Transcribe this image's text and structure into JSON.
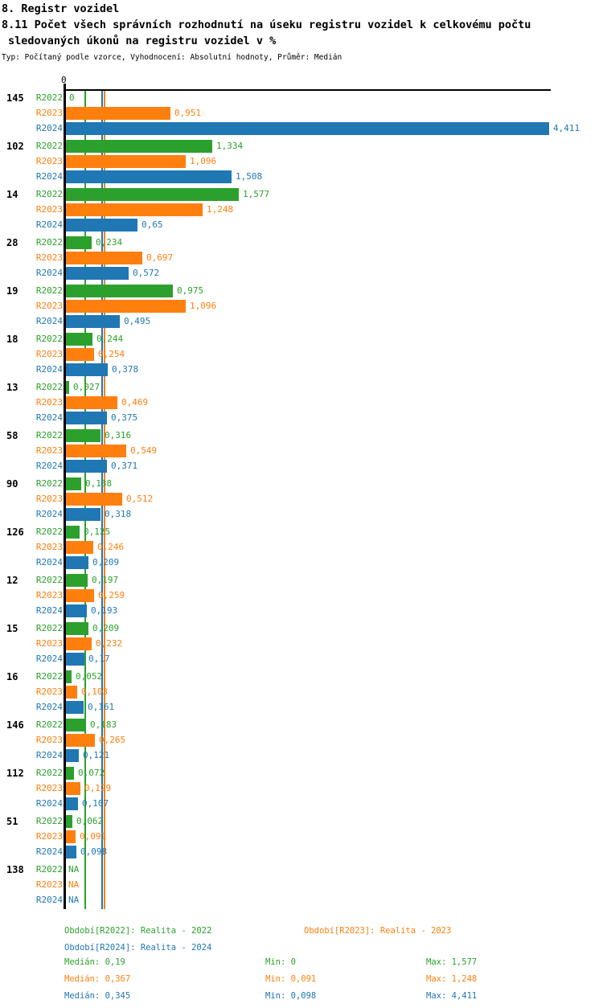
{
  "header": {
    "title_line1": "8. Registr vozidel",
    "title_line2": "8.11 Počet všech správních rozhodnutí na úseku registru vozidel k celkovému počtu",
    "title_line3": "sledovaných úkonů na registru vozidel v %",
    "subtitle": "Typ: Počítaný podle vzorce, Vyhodnocení: Absolutní hodnoty, Průměr: Medián"
  },
  "chart_data": {
    "type": "bar",
    "orientation": "horizontal",
    "title": "8.11 Počet všech správních rozhodnutí na úseku registru vozidel k celkovému počtu sledovaných úkonů na registru vozidel v %",
    "axis": {
      "origin_label": "0",
      "xmin": 0,
      "xmax": 4.411,
      "grid": false
    },
    "series": [
      {
        "name": "R2022",
        "color": "#2ca02c",
        "legend": "Období[R2022]: Realita - 2022",
        "median": 0.19,
        "median_label": "Medián: 0,19",
        "min_label": "Min: 0",
        "max_label": "Max: 1,577"
      },
      {
        "name": "R2023",
        "color": "#ff7f0e",
        "legend": "Období[R2023]: Realita - 2023",
        "median": 0.367,
        "median_label": "Medián: 0,367",
        "min_label": "Min: 0,091",
        "max_label": "Max: 1,248"
      },
      {
        "name": "R2024",
        "color": "#1f77b4",
        "legend": "Období[R2024]: Realita - 2024",
        "median": 0.345,
        "median_label": "Medián: 0,345",
        "min_label": "Min: 0,098",
        "max_label": "Max: 4,411"
      }
    ],
    "groups": [
      {
        "category": "145",
        "values": [
          0,
          0.951,
          4.411
        ],
        "labels": [
          "0",
          "0,951",
          "4,411"
        ]
      },
      {
        "category": "102",
        "values": [
          1.334,
          1.096,
          1.508
        ],
        "labels": [
          "1,334",
          "1,096",
          "1,508"
        ]
      },
      {
        "category": "14",
        "values": [
          1.577,
          1.248,
          0.65
        ],
        "labels": [
          "1,577",
          "1,248",
          "0,65"
        ]
      },
      {
        "category": "28",
        "values": [
          0.234,
          0.697,
          0.572
        ],
        "labels": [
          "0,234",
          "0,697",
          "0,572"
        ]
      },
      {
        "category": "19",
        "values": [
          0.975,
          1.096,
          0.495
        ],
        "labels": [
          "0,975",
          "1,096",
          "0,495"
        ]
      },
      {
        "category": "18",
        "values": [
          0.244,
          0.254,
          0.378
        ],
        "labels": [
          "0,244",
          "0,254",
          "0,378"
        ]
      },
      {
        "category": "13",
        "values": [
          0.027,
          0.469,
          0.375
        ],
        "labels": [
          "0,027",
          "0,469",
          "0,375"
        ]
      },
      {
        "category": "58",
        "values": [
          0.316,
          0.549,
          0.371
        ],
        "labels": [
          "0,316",
          "0,549",
          "0,371"
        ]
      },
      {
        "category": "90",
        "values": [
          0.138,
          0.512,
          0.318
        ],
        "labels": [
          "0,138",
          "0,512",
          "0,318"
        ]
      },
      {
        "category": "126",
        "values": [
          0.125,
          0.246,
          0.209
        ],
        "labels": [
          "0,125",
          "0,246",
          "0,209"
        ]
      },
      {
        "category": "12",
        "values": [
          0.197,
          0.259,
          0.193
        ],
        "labels": [
          "0,197",
          "0,259",
          "0,193"
        ]
      },
      {
        "category": "15",
        "values": [
          0.209,
          0.232,
          0.17
        ],
        "labels": [
          "0,209",
          "0,232",
          "0,17"
        ]
      },
      {
        "category": "16",
        "values": [
          0.052,
          0.103,
          0.161
        ],
        "labels": [
          "0,052",
          "0,103",
          "0,161"
        ]
      },
      {
        "category": "146",
        "values": [
          0.183,
          0.265,
          0.121
        ],
        "labels": [
          "0,183",
          "0,265",
          "0,121"
        ]
      },
      {
        "category": "112",
        "values": [
          0.072,
          0.129,
          0.107
        ],
        "labels": [
          "0,072",
          "0,129",
          "0,107"
        ]
      },
      {
        "category": "51",
        "values": [
          0.062,
          0.091,
          0.098
        ],
        "labels": [
          "0,062",
          "0,091",
          "0,098"
        ]
      },
      {
        "category": "138",
        "values": [
          null,
          null,
          null
        ],
        "labels": [
          "NA",
          "NA",
          "NA"
        ]
      }
    ],
    "na_label": "NA"
  }
}
